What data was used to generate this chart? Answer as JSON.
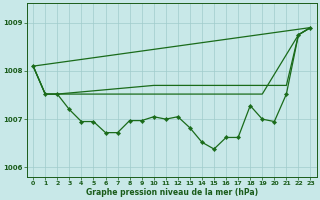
{
  "xlabel": "Graphe pression niveau de la mer (hPa)",
  "xlim": [
    -0.5,
    23.5
  ],
  "ylim": [
    1005.8,
    1009.4
  ],
  "yticks": [
    1006,
    1007,
    1008,
    1009
  ],
  "xticks": [
    0,
    1,
    2,
    3,
    4,
    5,
    6,
    7,
    8,
    9,
    10,
    11,
    12,
    13,
    14,
    15,
    16,
    17,
    18,
    19,
    20,
    21,
    22,
    23
  ],
  "background_color": "#c8e8e8",
  "grid_color": "#a0cccc",
  "line_color": "#1a6b1a",
  "line_straight": {
    "x": [
      0,
      23
    ],
    "y": [
      1008.1,
      1008.9
    ]
  },
  "line_smooth": {
    "x": [
      0,
      1,
      2,
      10,
      21,
      22,
      23
    ],
    "y": [
      1008.1,
      1007.52,
      1007.52,
      1007.7,
      1007.7,
      1008.75,
      1008.9
    ]
  },
  "line_mid": {
    "x": [
      0,
      1,
      2,
      3,
      4,
      5,
      6,
      7,
      8,
      9,
      10,
      11,
      12,
      13,
      16,
      17,
      18,
      19,
      22,
      23
    ],
    "y": [
      1008.1,
      1007.52,
      1007.52,
      1007.52,
      1007.52,
      1007.52,
      1007.52,
      1007.52,
      1007.52,
      1007.52,
      1007.52,
      1007.52,
      1007.52,
      1007.52,
      1007.52,
      1007.52,
      1007.52,
      1007.52,
      1008.75,
      1008.9
    ]
  },
  "line_detail": {
    "x": [
      0,
      1,
      2,
      3,
      4,
      5,
      6,
      7,
      8,
      9,
      10,
      11,
      12,
      13,
      14,
      15,
      16,
      17,
      18,
      19,
      20,
      21,
      22,
      23
    ],
    "y": [
      1008.1,
      1007.52,
      1007.52,
      1007.2,
      1006.95,
      1006.95,
      1006.72,
      1006.72,
      1006.97,
      1006.97,
      1007.05,
      1007.0,
      1007.05,
      1006.82,
      1006.52,
      1006.38,
      1006.62,
      1006.62,
      1007.28,
      1007.0,
      1006.95,
      1007.52,
      1008.75,
      1008.9
    ]
  },
  "marker": "D",
  "markersize": 2.2,
  "linewidth": 0.9
}
